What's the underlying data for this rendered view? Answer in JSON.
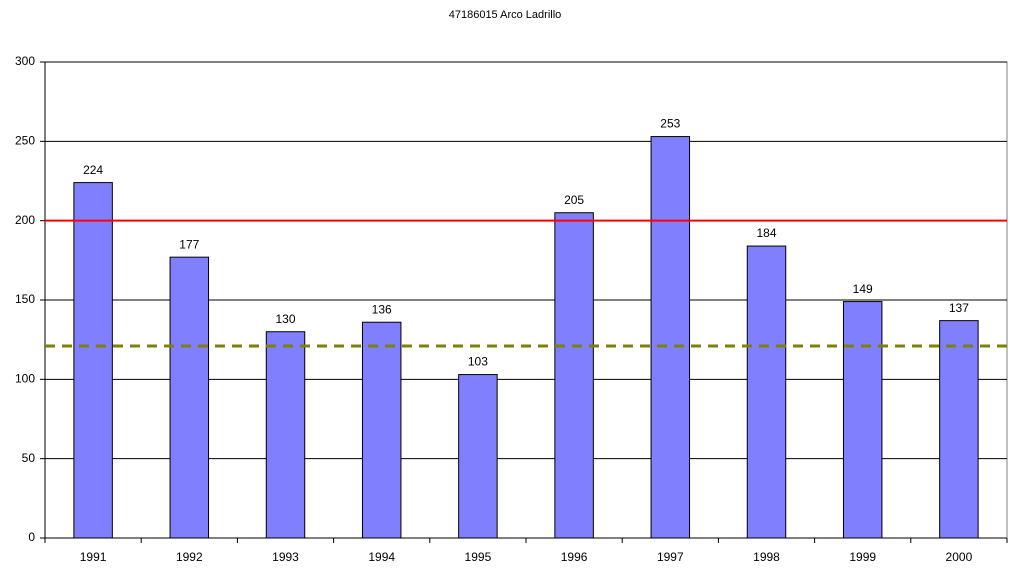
{
  "chart_data": {
    "type": "bar",
    "title": "47186015 Arco Ladrillo",
    "categories": [
      "1991",
      "1992",
      "1993",
      "1994",
      "1995",
      "1996",
      "1997",
      "1998",
      "1999",
      "2000"
    ],
    "values": [
      224,
      177,
      130,
      136,
      103,
      205,
      253,
      184,
      149,
      137
    ],
    "color": "#8080ff",
    "ylim": [
      0,
      300
    ],
    "yticks": [
      0,
      50,
      100,
      150,
      200,
      250,
      300
    ],
    "grid": true,
    "reference_lines": [
      {
        "value": 200,
        "color": "#ff0000",
        "style": "solid"
      },
      {
        "value": 121,
        "color": "#808000",
        "style": "dashed"
      }
    ]
  }
}
